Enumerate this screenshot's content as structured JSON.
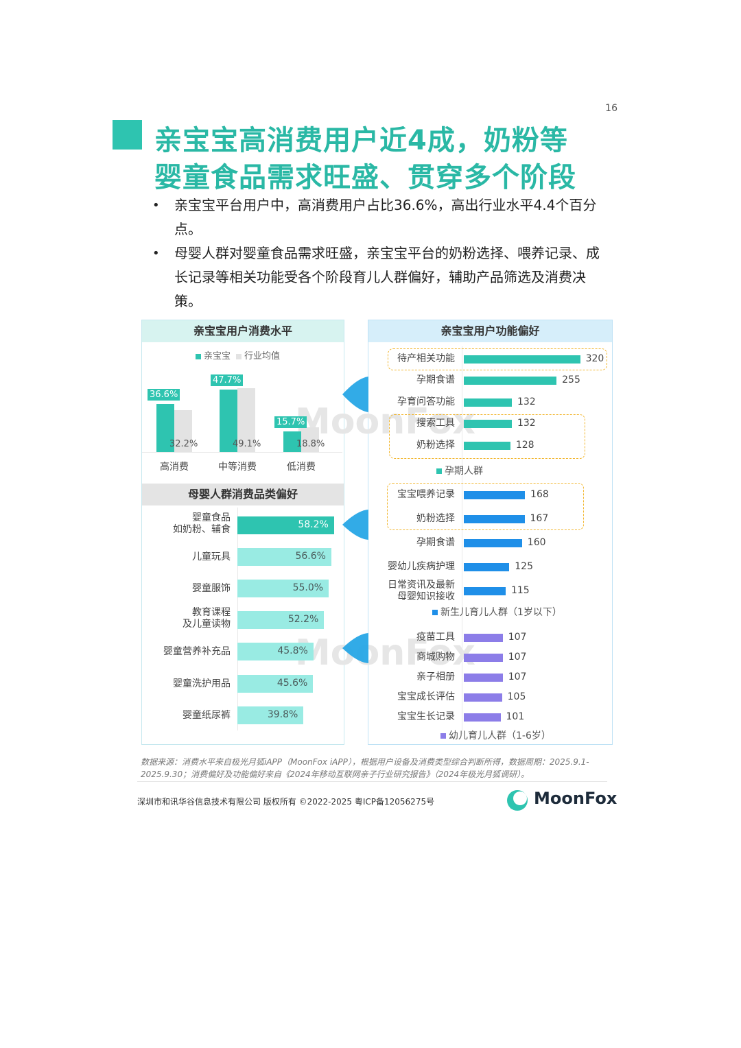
{
  "page_number": "16",
  "title": {
    "line1": "亲宝宝高消费用户近4成，奶粉等",
    "line2": "婴童食品需求旺盛、贯穿多个阶段"
  },
  "bullets": [
    "亲宝宝平台用户中，高消费用户占比36.6%，高出行业水平4.4个百分点。",
    "母婴人群对婴童食品需求旺盛，亲宝宝平台的奶粉选择、喂养记录、成长记录等相关功能受各个阶段育儿人群偏好，辅助产品筛选及消费决策。"
  ],
  "colors": {
    "teal": "#2ec4b0",
    "teal_light": "#99ebe3",
    "gray": "#e3e3e3",
    "blue": "#1f8fe8",
    "purple": "#8c7de8",
    "highlight_box": "#f2b62e"
  },
  "watermark": "MoonFox",
  "chart_data": [
    {
      "type": "bar",
      "title": "亲宝宝用户消费水平",
      "categories": [
        "高消费",
        "中等消费",
        "低消费"
      ],
      "series": [
        {
          "name": "亲宝宝",
          "values": [
            36.6,
            47.7,
            15.7
          ],
          "labels": [
            "36.6%",
            "47.7%",
            "15.7%"
          ],
          "color": "#2ec4b0"
        },
        {
          "name": "行业均值",
          "values": [
            32.2,
            49.1,
            18.8
          ],
          "labels": [
            "32.2%",
            "49.1%",
            "18.8%"
          ],
          "color": "#e3e3e3"
        }
      ]
    },
    {
      "type": "bar",
      "orientation": "horizontal",
      "title": "母婴人群消费品类偏好",
      "categories": [
        "婴童食品\n如奶粉、辅食",
        "儿童玩具",
        "婴童服饰",
        "教育课程\n及儿童读物",
        "婴童营养补充品",
        "婴童洗护用品",
        "婴童纸尿裤"
      ],
      "values": [
        58.2,
        56.6,
        55.0,
        52.2,
        45.8,
        45.6,
        39.8
      ],
      "labels": [
        "58.2%",
        "56.6%",
        "55.0%",
        "52.2%",
        "45.8%",
        "45.6%",
        "39.8%"
      ]
    },
    {
      "type": "bar",
      "orientation": "horizontal",
      "title": "亲宝宝用户功能偏好",
      "groups": [
        {
          "name": "孕期人群",
          "color": "#2ec4b0",
          "categories": [
            "待产相关功能",
            "孕期食谱",
            "孕育问答功能",
            "搜索工具",
            "奶粉选择"
          ],
          "values": [
            320,
            255,
            132,
            132,
            128
          ]
        },
        {
          "name": "新生儿育儿人群（1岁以下）",
          "color": "#1f8fe8",
          "categories": [
            "宝宝喂养记录",
            "奶粉选择",
            "孕期食谱",
            "婴幼儿疾病护理",
            "日常资讯及最新\n母婴知识接收"
          ],
          "values": [
            168,
            167,
            160,
            125,
            115
          ]
        },
        {
          "name": "幼儿育儿人群（1-6岁）",
          "color": "#8c7de8",
          "categories": [
            "疫苗工具",
            "商城购物",
            "亲子相册",
            "宝宝成长评估",
            "宝宝生长记录"
          ],
          "values": [
            107,
            107,
            107,
            105,
            101
          ]
        }
      ]
    }
  ],
  "source": "数据来源：消费水平来自极光月狐iAPP（MoonFox iAPP），根据用户设备及消费类型综合判断所得，数据周期：2025.9.1-2025.9.30；消费偏好及功能偏好来自《2024年移动互联网亲子行业研究报告》（2024年极光月狐调研）。",
  "copyright": "深圳市和讯华谷信息技术有限公司 版权所有 ©2022-2025    粤ICP备12056275号",
  "brand": "MoonFox"
}
